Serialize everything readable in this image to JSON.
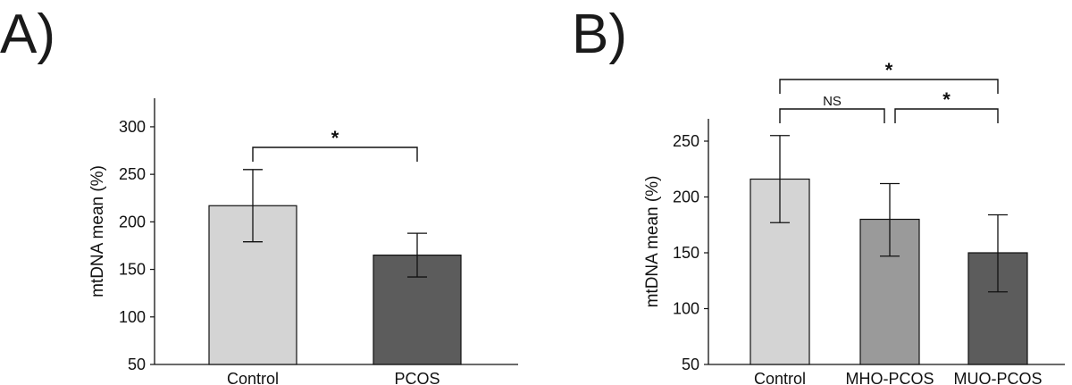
{
  "panels": {
    "a": {
      "label": "A)"
    },
    "b": {
      "label": "B)"
    }
  },
  "chart_data": [
    {
      "type": "bar",
      "title": "",
      "xlabel": "",
      "ylabel": "mtDNA mean (%)",
      "ylim": [
        50,
        330
      ],
      "yticks": [
        50,
        100,
        150,
        200,
        250,
        300
      ],
      "categories": [
        "Control",
        "PCOS"
      ],
      "values": [
        217,
        165
      ],
      "errors": [
        [
          179,
          255
        ],
        [
          142,
          188
        ]
      ],
      "bar_colors": [
        "#d4d4d4",
        "#5c5c5c"
      ],
      "significance": [
        {
          "from": 0,
          "to": 1,
          "label": "*"
        }
      ]
    },
    {
      "type": "bar",
      "title": "",
      "xlabel": "",
      "ylabel": "mtDNA mean (%)",
      "ylim": [
        50,
        270
      ],
      "yticks": [
        50,
        100,
        150,
        200,
        250
      ],
      "categories": [
        "Control",
        "MHO-PCOS",
        "MUO-PCOS"
      ],
      "values": [
        216,
        180,
        150
      ],
      "errors": [
        [
          177,
          255
        ],
        [
          147,
          212
        ],
        [
          115,
          184
        ]
      ],
      "bar_colors": [
        "#d4d4d4",
        "#9a9a9a",
        "#5c5c5c"
      ],
      "significance": [
        {
          "from": 0,
          "to": 1,
          "label": "NS"
        },
        {
          "from": 1,
          "to": 2,
          "label": "*"
        },
        {
          "from": 0,
          "to": 2,
          "label": "*"
        }
      ]
    }
  ]
}
